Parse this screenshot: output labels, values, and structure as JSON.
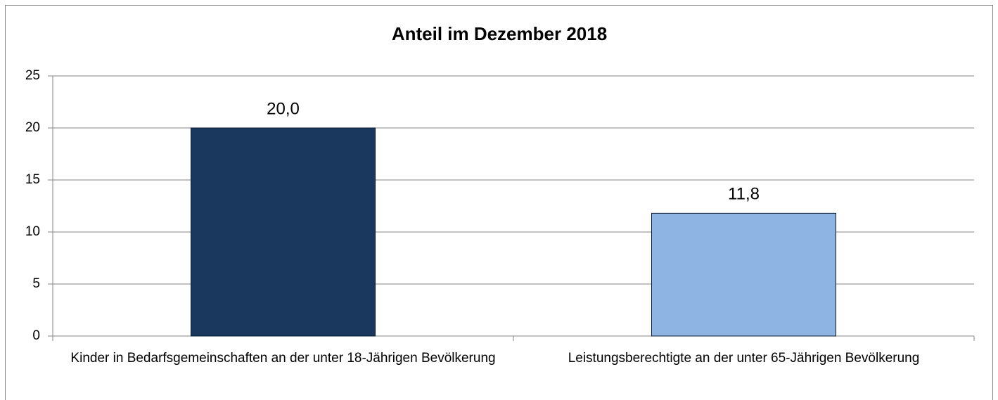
{
  "chart_data": {
    "type": "bar",
    "title": "Anteil im Dezember 2018",
    "categories": [
      "Kinder in Bedarfsgemeinschaften an der unter 18-Jährigen Bevölkerung",
      "Leistungsberechtigte an der unter 65-Jährigen Bevölkerung"
    ],
    "values": [
      20.0,
      11.8
    ],
    "value_labels": [
      "20,0",
      "11,8"
    ],
    "colors": [
      "#1a375e",
      "#8eb4e3"
    ],
    "ylim": [
      0,
      25
    ],
    "yticks": [
      0,
      5,
      10,
      15,
      20,
      25
    ],
    "grid": true
  }
}
